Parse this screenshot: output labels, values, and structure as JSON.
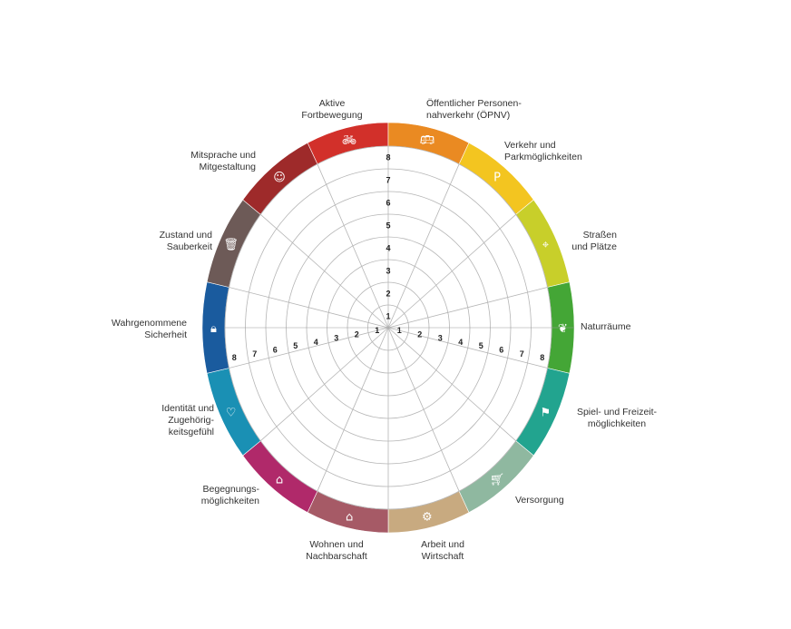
{
  "diagram": {
    "scale_values": [
      "1",
      "2",
      "3",
      "4",
      "5",
      "6",
      "7",
      "8"
    ],
    "segments": [
      {
        "label": "Aktive\nFortbewegung",
        "color": "#d2302a",
        "icon": "bicycle-icon"
      },
      {
        "label": "Öffentlicher Personen-\nnahverkehr (ÖPNV)",
        "color": "#ea8a22",
        "icon": "bus-icon"
      },
      {
        "label": "Verkehr und\nParkmöglichkeiten",
        "color": "#f3c520",
        "icon": "parking-car-icon"
      },
      {
        "label": "Straßen\nund Plätze",
        "color": "#c8cf2a",
        "icon": "square-location-icon"
      },
      {
        "label": "Naturräume",
        "color": "#44a636",
        "icon": "nature-bench-icon"
      },
      {
        "label": "Spiel- und Freizeit-\nmöglichkeiten",
        "color": "#22a48f",
        "icon": "play-people-icon"
      },
      {
        "label": "Versorgung",
        "color": "#8fb8a0",
        "icon": "shopping-cart-icon"
      },
      {
        "label": "Arbeit und\nWirtschaft",
        "color": "#c8aa80",
        "icon": "robot-arm-icon"
      },
      {
        "label": "Wohnen und\nNachbarschaft",
        "color": "#a65a66",
        "icon": "houses-icon"
      },
      {
        "label": "Begegnungs-\nmöglichkeiten",
        "color": "#b0296a",
        "icon": "meeting-house-icon"
      },
      {
        "label": "Identität und\nZugehörig-\nkeitsgefühl",
        "color": "#1a90b4",
        "icon": "heart-hand-icon"
      },
      {
        "label": "Wahrgenommene\nSicherheit",
        "color": "#1a5b9e",
        "icon": "lock-shield-icon"
      },
      {
        "label": "Zustand und\nSauberkeit",
        "color": "#6d5a57",
        "icon": "trash-broom-icon"
      },
      {
        "label": "Mitsprache und\nMitgestaltung",
        "color": "#9e2a2a",
        "icon": "head-ideas-icon"
      }
    ]
  }
}
